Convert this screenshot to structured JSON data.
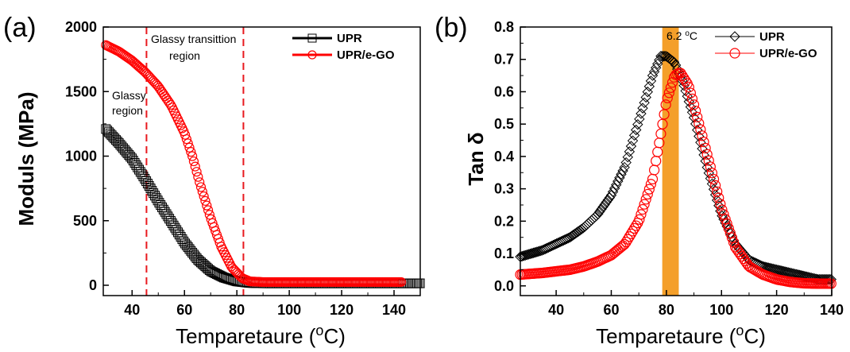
{
  "colors": {
    "series_a": "#000000",
    "series_b": "#ff0000",
    "band": "#f39a1f",
    "vline": "#e8191e"
  },
  "chart_data": [
    {
      "type": "scatter",
      "panel": "(a)",
      "xlabel": "Temparetaure (°C)",
      "ylabel": "Moduls (MPa)",
      "xlim": [
        29,
        150
      ],
      "ylim": [
        -80,
        2000
      ],
      "xticks": [
        "40",
        "60",
        "80",
        "100",
        "120",
        "140"
      ],
      "xtick_values": [
        40,
        60,
        80,
        100,
        120,
        140
      ],
      "yticks": [
        "0",
        "500",
        "1000",
        "1500",
        "2000"
      ],
      "ytick_values": [
        0,
        500,
        1000,
        1500,
        2000
      ],
      "legend": [
        "UPR",
        "UPR/e-GO"
      ],
      "legend_position": "top-right",
      "annotations": [
        "Glassy transittion",
        "region",
        "Glassy",
        "region"
      ],
      "reference_lines_x": [
        45.5,
        82.5
      ],
      "series": [
        {
          "name": "UPR",
          "marker": "square",
          "color": "#000000",
          "x": [
            30,
            35,
            40,
            45,
            50,
            55,
            60,
            65,
            70,
            75,
            80,
            85,
            90,
            100,
            110,
            120,
            130,
            140,
            150
          ],
          "y": [
            1210,
            1100,
            980,
            820,
            650,
            490,
            330,
            200,
            110,
            60,
            30,
            18,
            15,
            15,
            15,
            15,
            15,
            15,
            15
          ]
        },
        {
          "name": "UPR/e-GO",
          "marker": "circle",
          "color": "#ff0000",
          "x": [
            30,
            35,
            40,
            45,
            50,
            55,
            60,
            63,
            66,
            70,
            74,
            78,
            82,
            85,
            90,
            100,
            110,
            120,
            130,
            140,
            143
          ],
          "y": [
            1860,
            1810,
            1740,
            1650,
            1540,
            1390,
            1180,
            1000,
            780,
            520,
            300,
            140,
            55,
            30,
            25,
            25,
            25,
            25,
            25,
            25,
            25
          ]
        }
      ]
    },
    {
      "type": "scatter",
      "panel": "(b)",
      "xlabel": "Temparetaure (°C)",
      "ylabel": "Tan δ",
      "xlim": [
        27,
        140
      ],
      "ylim": [
        -0.03,
        0.8
      ],
      "xticks": [
        "40",
        "60",
        "80",
        "100",
        "120",
        "140"
      ],
      "xtick_values": [
        40,
        60,
        80,
        100,
        120,
        140
      ],
      "yticks": [
        "0.0",
        "0.1",
        "0.2",
        "0.3",
        "0.4",
        "0.5",
        "0.6",
        "0.7",
        "0.8"
      ],
      "ytick_values": [
        0,
        0.1,
        0.2,
        0.3,
        0.4,
        0.5,
        0.6,
        0.7,
        0.8
      ],
      "legend": [
        "UPR",
        "UPR/e-GO"
      ],
      "legend_position": "top-right",
      "annotations": [
        "6.2 °C"
      ],
      "highlight_band_x": [
        78.5,
        84.5
      ],
      "series": [
        {
          "name": "UPR",
          "marker": "diamond",
          "color": "#000000",
          "x": [
            27,
            35,
            40,
            45,
            50,
            55,
            60,
            65,
            70,
            75,
            78,
            80,
            83,
            86,
            90,
            95,
            100,
            105,
            110,
            115,
            120,
            125,
            130,
            135,
            140
          ],
          "y": [
            0.09,
            0.11,
            0.13,
            0.15,
            0.18,
            0.22,
            0.28,
            0.37,
            0.51,
            0.65,
            0.71,
            0.71,
            0.69,
            0.63,
            0.52,
            0.36,
            0.22,
            0.13,
            0.08,
            0.06,
            0.05,
            0.04,
            0.03,
            0.02,
            0.02
          ]
        },
        {
          "name": "UPR/e-GO",
          "marker": "circle",
          "color": "#ff0000",
          "x": [
            27,
            35,
            40,
            45,
            50,
            55,
            60,
            65,
            70,
            75,
            78,
            80,
            83,
            85,
            88,
            90,
            95,
            100,
            105,
            110,
            115,
            120,
            125,
            130,
            135,
            140
          ],
          "y": [
            0.035,
            0.04,
            0.045,
            0.05,
            0.06,
            0.075,
            0.095,
            0.13,
            0.2,
            0.33,
            0.47,
            0.57,
            0.65,
            0.66,
            0.62,
            0.56,
            0.4,
            0.24,
            0.12,
            0.06,
            0.035,
            0.02,
            0.012,
            0.008,
            0.007,
            0.007
          ]
        }
      ]
    }
  ]
}
